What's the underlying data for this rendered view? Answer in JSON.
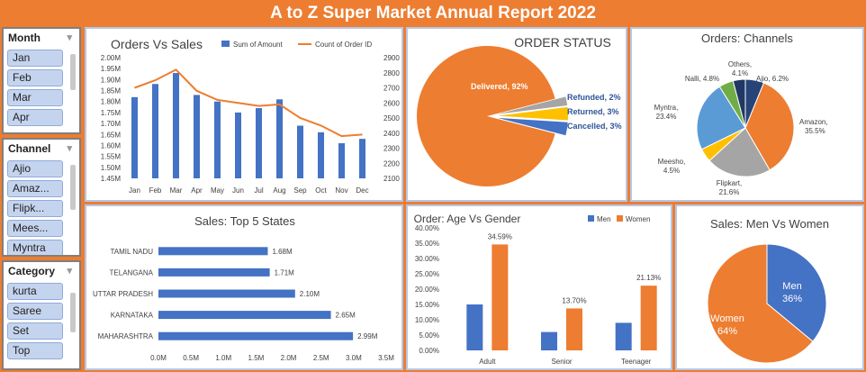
{
  "report_title": "A to Z Super Market Annual Report 2022",
  "slicers": {
    "month": {
      "title": "Month",
      "items": [
        "Jan",
        "Feb",
        "Mar",
        "Apr"
      ]
    },
    "channel": {
      "title": "Channel",
      "items": [
        "Ajio",
        "Amaz...",
        "Flipk...",
        "Mees...",
        "Myntra"
      ]
    },
    "category": {
      "title": "Category",
      "items": [
        "kurta",
        "Saree",
        "Set",
        "Top"
      ]
    }
  },
  "chart_data": [
    {
      "id": "orders_vs_sales",
      "type": "bar+line",
      "title": "Orders Vs Sales",
      "categories": [
        "Jan",
        "Feb",
        "Mar",
        "Apr",
        "May",
        "Jun",
        "Jul",
        "Aug",
        "Sep",
        "Oct",
        "Nov",
        "Dec"
      ],
      "series": [
        {
          "name": "Sum of Amount",
          "type": "bar",
          "axis": "left",
          "color": "#4472c4",
          "values": [
            1.82,
            1.88,
            1.93,
            1.83,
            1.8,
            1.75,
            1.77,
            1.81,
            1.69,
            1.66,
            1.61,
            1.63
          ]
        },
        {
          "name": "Count of Order ID",
          "type": "line",
          "axis": "right",
          "color": "#ed7d31",
          "values": [
            2700,
            2750,
            2820,
            2680,
            2620,
            2600,
            2580,
            2590,
            2500,
            2450,
            2380,
            2390
          ]
        }
      ],
      "y_left": {
        "min": 1.45,
        "max": 2.0,
        "step": 0.05,
        "ticks": [
          "1.45M",
          "1.50M",
          "1.55M",
          "1.60M",
          "1.65M",
          "1.70M",
          "1.75M",
          "1.80M",
          "1.85M",
          "1.90M",
          "1.95M",
          "2.00M"
        ]
      },
      "y_right": {
        "min": 2100,
        "max": 2900,
        "step": 100,
        "ticks": [
          "2100",
          "2200",
          "2300",
          "2400",
          "2500",
          "2600",
          "2700",
          "2800",
          "2900"
        ]
      }
    },
    {
      "id": "order_status",
      "type": "pie",
      "title": "ORDER STATUS",
      "slices": [
        {
          "label": "Delivered",
          "pct_label": "92%",
          "value": 92,
          "color": "#ed7d31"
        },
        {
          "label": "Refunded",
          "pct_label": "2%",
          "value": 2,
          "color": "#a5a5a5"
        },
        {
          "label": "Returned",
          "pct_label": "3%",
          "value": 3,
          "color": "#ffc000"
        },
        {
          "label": "Cancelled",
          "pct_label": "3%",
          "value": 3,
          "color": "#4472c4"
        }
      ]
    },
    {
      "id": "orders_channels",
      "type": "pie",
      "title": "Orders: Channels",
      "slices": [
        {
          "label": "Ajio",
          "pct_label": "6.2%",
          "value": 6.2,
          "color": "#264478"
        },
        {
          "label": "Amazon",
          "pct_label": "35.5%",
          "value": 35.5,
          "color": "#ed7d31"
        },
        {
          "label": "Flipkart",
          "pct_label": "21.6%",
          "value": 21.6,
          "color": "#a5a5a5"
        },
        {
          "label": "Meesho",
          "pct_label": "4.5%",
          "value": 4.5,
          "color": "#ffc000"
        },
        {
          "label": "Myntra",
          "pct_label": "23.4%",
          "value": 23.4,
          "color": "#5b9bd5"
        },
        {
          "label": "Nalli",
          "pct_label": "4.8%",
          "value": 4.8,
          "color": "#70ad47"
        },
        {
          "label": "Others",
          "pct_label": "4.1%",
          "value": 4.1,
          "color": "#203864"
        }
      ]
    },
    {
      "id": "top5_states",
      "type": "bar",
      "orientation": "horizontal",
      "title": "Sales: Top 5 States",
      "categories": [
        "TAMIL NADU",
        "TELANGANA",
        "UTTAR PRADESH",
        "KARNATAKA",
        "MAHARASHTRA"
      ],
      "values": [
        1.68,
        1.71,
        2.1,
        2.65,
        2.99
      ],
      "value_labels": [
        "1.68M",
        "1.71M",
        "2.10M",
        "2.65M",
        "2.99M"
      ],
      "color": "#4472c4",
      "xlim": [
        0,
        3.5
      ],
      "x_ticks": [
        "0.0M",
        "0.5M",
        "1.0M",
        "1.5M",
        "2.0M",
        "2.5M",
        "3.0M",
        "3.5M"
      ]
    },
    {
      "id": "age_vs_gender",
      "type": "bar",
      "title": "Order: Age Vs Gender",
      "categories": [
        "Adult",
        "Senior",
        "Teenager"
      ],
      "series": [
        {
          "name": "Men",
          "color": "#4472c4",
          "values": [
            15.0,
            6.0,
            9.0
          ],
          "labels": [
            "",
            "",
            ""
          ]
        },
        {
          "name": "Women",
          "color": "#ed7d31",
          "values": [
            34.59,
            13.7,
            21.13
          ],
          "labels": [
            "34.59%",
            "13.70%",
            "21.13%"
          ]
        }
      ],
      "ylim": [
        0,
        40
      ],
      "y_ticks": [
        "0.00%",
        "5.00%",
        "10.00%",
        "15.00%",
        "20.00%",
        "25.00%",
        "30.00%",
        "35.00%",
        "40.00%"
      ]
    },
    {
      "id": "men_vs_women",
      "type": "pie",
      "title": "Sales: Men Vs Women",
      "slices": [
        {
          "label": "Men",
          "pct_label": "36%",
          "value": 36,
          "color": "#4472c4"
        },
        {
          "label": "Women",
          "pct_label": "64%",
          "value": 64,
          "color": "#ed7d31"
        }
      ]
    }
  ]
}
